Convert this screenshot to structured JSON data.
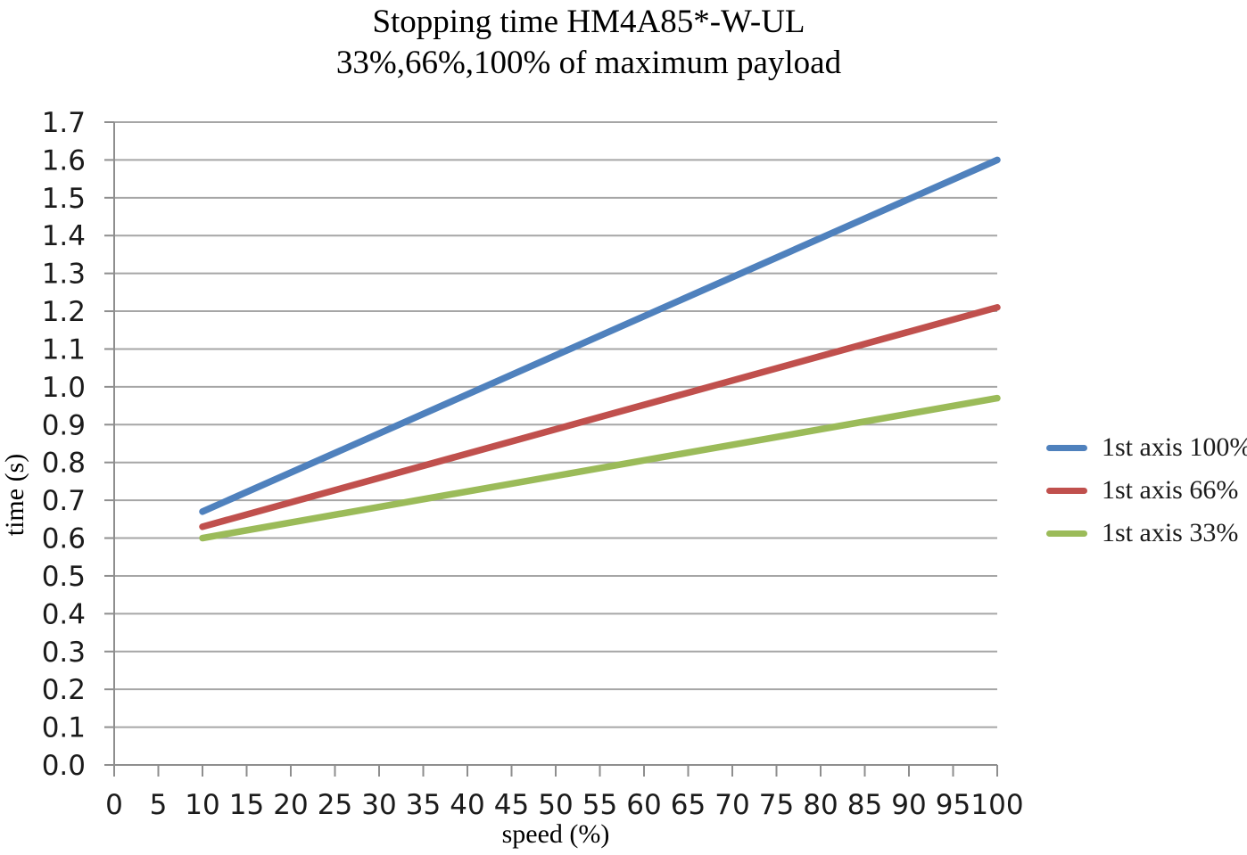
{
  "title": "Stopping time HM4A85*-W-UL",
  "subtitle": "33%,66%,100% of maximum payload",
  "chart_data": {
    "type": "line",
    "title": "Stopping time HM4A85*-W-UL",
    "subtitle": "33%,66%,100% of maximum payload",
    "xlabel": "speed (%)",
    "ylabel": "time (s)",
    "xlim": [
      0,
      100
    ],
    "ylim": [
      0.0,
      1.7
    ],
    "xticks": [
      0,
      5,
      10,
      15,
      20,
      25,
      30,
      35,
      40,
      45,
      50,
      55,
      60,
      65,
      70,
      75,
      80,
      85,
      90,
      95,
      100
    ],
    "yticks": [
      0.0,
      0.1,
      0.2,
      0.3,
      0.4,
      0.5,
      0.6,
      0.7,
      0.8,
      0.9,
      1.0,
      1.1,
      1.2,
      1.3,
      1.4,
      1.5,
      1.6,
      1.7
    ],
    "grid": "horizontal-only",
    "legend_position": "right",
    "x": [
      10,
      100
    ],
    "series": [
      {
        "name": "1st axis 100%",
        "color": "#4F81BD",
        "values": [
          0.67,
          1.6
        ]
      },
      {
        "name": "1st axis 66%",
        "color": "#C0504D",
        "values": [
          0.63,
          1.21
        ]
      },
      {
        "name": "1st axis 33%",
        "color": "#9BBB59",
        "values": [
          0.6,
          0.97
        ]
      }
    ],
    "colors": {
      "gridline": "#A6A6A6",
      "axis": "#8E8E8E",
      "tick_text": "#1B1B1B",
      "background": "#FFFFFF"
    }
  }
}
